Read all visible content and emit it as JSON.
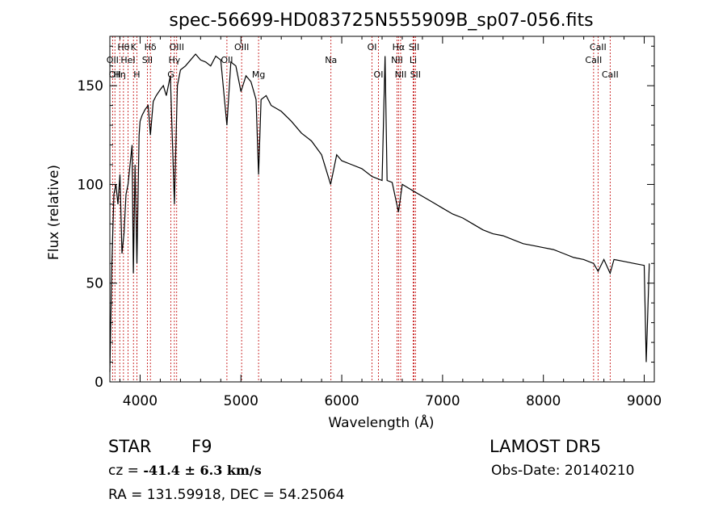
{
  "chart_data": {
    "type": "line",
    "title": "spec-56699-HD083725N555909B_sp07-056.fits",
    "xlabel": "Wavelength (Å)",
    "ylabel": "Flux (relative)",
    "xlim": [
      3700,
      9100
    ],
    "ylim": [
      0,
      175
    ],
    "xticks": [
      "4000",
      "5000",
      "6000",
      "7000",
      "8000",
      "9000"
    ],
    "yticks": [
      "0",
      "50",
      "100",
      "150"
    ],
    "series": [
      {
        "x": [
          3700,
          3720,
          3740,
          3760,
          3780,
          3800,
          3820,
          3840,
          3860,
          3880,
          3900,
          3920,
          3933,
          3950,
          3968,
          3990,
          4000,
          4020,
          4050,
          4080,
          4102,
          4130,
          4160,
          4200,
          4230,
          4260,
          4300,
          4340,
          4370,
          4400,
          4450,
          4500,
          4550,
          4600,
          4650,
          4700,
          4750,
          4800,
          4861,
          4900,
          4950,
          5000,
          5050,
          5100,
          5150,
          5175,
          5200,
          5250,
          5300,
          5400,
          5500,
          5600,
          5700,
          5800,
          5890,
          5950,
          6000,
          6100,
          6200,
          6300,
          6400,
          6430,
          6450,
          6500,
          6563,
          6600,
          6700,
          6800,
          6900,
          7000,
          7100,
          7200,
          7300,
          7400,
          7500,
          7600,
          7700,
          7800,
          7900,
          8000,
          8100,
          8200,
          8300,
          8400,
          8498,
          8542,
          8600,
          8662,
          8700,
          8800,
          8900,
          9000,
          9020,
          9050
        ],
        "y": [
          5,
          60,
          95,
          100,
          90,
          105,
          65,
          75,
          95,
          100,
          110,
          120,
          55,
          110,
          60,
          125,
          132,
          135,
          138,
          140,
          125,
          142,
          145,
          148,
          150,
          145,
          155,
          90,
          150,
          158,
          160,
          163,
          166,
          163,
          162,
          160,
          165,
          163,
          130,
          162,
          160,
          147,
          155,
          152,
          143,
          105,
          143,
          145,
          140,
          137,
          132,
          126,
          122,
          115,
          100,
          115,
          112,
          110,
          108,
          104,
          102,
          165,
          102,
          101,
          86,
          100,
          97,
          94,
          91,
          88,
          85,
          83,
          80,
          77,
          75,
          74,
          72,
          70,
          69,
          68,
          67,
          65,
          63,
          62,
          60,
          56,
          62,
          55,
          62,
          61,
          60,
          59,
          10,
          60
        ]
      }
    ],
    "lines": [
      {
        "x": 3727,
        "label": "OII",
        "row": 2
      },
      {
        "x": 3750,
        "label": "OII",
        "row": 3
      },
      {
        "x": 3798,
        "label": "Hη",
        "row": 3
      },
      {
        "x": 3835,
        "label": "Hθ",
        "row": 1
      },
      {
        "x": 3880,
        "label": "HeI",
        "row": 2
      },
      {
        "x": 3934,
        "label": "K",
        "row": 1
      },
      {
        "x": 3968,
        "label": "H",
        "row": 3
      },
      {
        "x": 4072,
        "label": "SII",
        "row": 2
      },
      {
        "x": 4102,
        "label": "Hδ",
        "row": 1
      },
      {
        "x": 4305,
        "label": "G",
        "row": 3
      },
      {
        "x": 4340,
        "label": "Hγ",
        "row": 2
      },
      {
        "x": 4363,
        "label": "OIII",
        "row": 1
      },
      {
        "x": 4861,
        "label": "OII",
        "row": 2
      },
      {
        "x": 5007,
        "label": "OIII",
        "row": 1
      },
      {
        "x": 5175,
        "label": "Mg",
        "row": 3
      },
      {
        "x": 5893,
        "label": "Na",
        "row": 2
      },
      {
        "x": 6300,
        "label": "OI",
        "row": 1
      },
      {
        "x": 6364,
        "label": "OI",
        "row": 3
      },
      {
        "x": 6548,
        "label": "NII",
        "row": 2
      },
      {
        "x": 6563,
        "label": "Hα",
        "row": 1
      },
      {
        "x": 6584,
        "label": "NII",
        "row": 3
      },
      {
        "x": 6708,
        "label": "Li",
        "row": 2
      },
      {
        "x": 6717,
        "label": "SII",
        "row": 1
      },
      {
        "x": 6731,
        "label": "SII",
        "row": 3
      },
      {
        "x": 8498,
        "label": "CaII",
        "row": 2
      },
      {
        "x": 8542,
        "label": "CaII",
        "row": 1
      },
      {
        "x": 8662,
        "label": "CaII",
        "row": 3
      }
    ],
    "grid": false,
    "legend": "none"
  },
  "info": {
    "object_type": "STAR",
    "subclass": "F9",
    "survey": "LAMOST  DR5",
    "cz_prefix": "cz = ",
    "cz_value": "-41.4 ± 6.3 km/s",
    "obs_date": "Obs-Date: 20140210",
    "coords": "RA = 131.59918, DEC =  54.25064"
  }
}
